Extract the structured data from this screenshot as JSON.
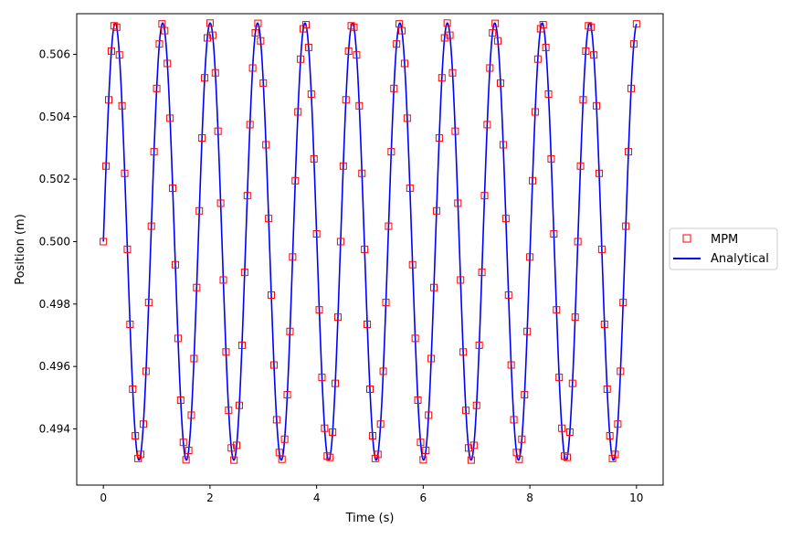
{
  "chart_data": {
    "type": "line",
    "title": "",
    "xlabel": "Time (s)",
    "ylabel": "Position (m)",
    "xlim": [
      -0.5,
      10.5
    ],
    "ylim": [
      0.4922,
      0.5073
    ],
    "x_ticks": [
      0,
      2,
      4,
      6,
      8,
      10
    ],
    "x_tick_labels": [
      "0",
      "2",
      "4",
      "6",
      "8",
      "10"
    ],
    "y_ticks": [
      0.494,
      0.496,
      0.498,
      0.5,
      0.502,
      0.504,
      0.506
    ],
    "y_tick_labels": [
      "0.494",
      "0.496",
      "0.498",
      "0.500",
      "0.502",
      "0.504",
      "0.506"
    ],
    "grid": false,
    "legend_position": "center-right",
    "series": [
      {
        "name": "MPM",
        "style": "square-markers",
        "color": "#ff0000",
        "equilibrium": 0.5,
        "amplitude": 0.007,
        "period": 0.89,
        "t_start": 0.0,
        "t_end": 10.0,
        "dt": 0.05
      },
      {
        "name": "Analytical",
        "style": "line",
        "color": "#0000ff",
        "equilibrium": 0.5,
        "amplitude": 0.007,
        "period": 0.89,
        "t_start": 0.0,
        "t_end": 10.0
      }
    ]
  }
}
